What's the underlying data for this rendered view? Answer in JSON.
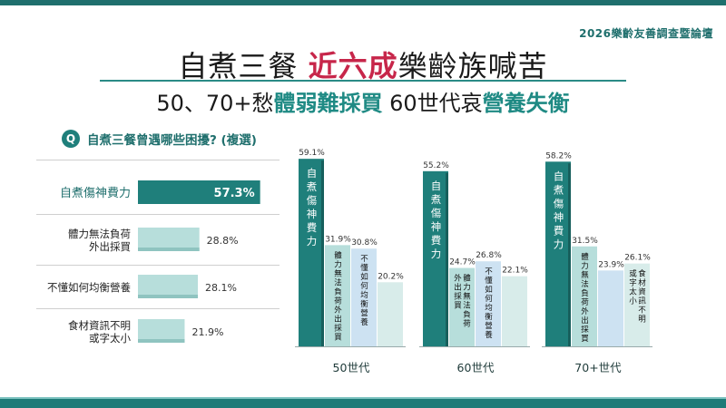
{
  "header_label": "2026樂齡友善調查暨論壇",
  "title": {
    "pre": "自煮三餐 ",
    "highlight": "近六成",
    "post": "樂齡族喊苦"
  },
  "subtitle": {
    "a": "50、70+愁",
    "b": "體弱難採買",
    "c": " 60世代哀",
    "d": "營養失衡"
  },
  "question": {
    "badge": "Q",
    "text": "自煮三餐曾遇哪些困擾? (複選)"
  },
  "colors": {
    "primary": "#1f7f7b",
    "secondary": "#b7dedb",
    "tertiary": "#cde2f2",
    "quaternary": "#d8ecea",
    "title_accent": "#c7264a"
  },
  "chart_data": [
    {
      "type": "bar",
      "orientation": "horizontal",
      "categories": [
        "自煮傷神費力",
        "體力無法負荷\n外出採買",
        "不懂如何均衡營養",
        "食材資訊不明\n或字太小"
      ],
      "values": [
        57.3,
        28.8,
        28.1,
        21.9
      ],
      "value_labels": [
        "57.3%",
        "28.8%",
        "28.1%",
        "21.9%"
      ]
    },
    {
      "type": "bar",
      "orientation": "vertical",
      "groups": [
        {
          "name": "50世代",
          "bars": [
            {
              "label": "自煮傷神費力",
              "value": 59.1,
              "value_label": "59.1%"
            },
            {
              "label": "體力無法負荷外出採買",
              "value": 31.9,
              "value_label": "31.9%"
            },
            {
              "label": "不懂如何均衡營養",
              "value": 30.8,
              "value_label": "30.8%"
            },
            {
              "label": "",
              "value": 20.2,
              "value_label": "20.2%"
            }
          ]
        },
        {
          "name": "60世代",
          "bars": [
            {
              "label": "自煮傷神費力",
              "value": 55.2,
              "value_label": "55.2%"
            },
            {
              "label": "外出採買\n體力無法負荷",
              "value": 24.7,
              "value_label": "24.7%"
            },
            {
              "label": "不懂如何均衡營養",
              "value": 26.8,
              "value_label": "26.8%"
            },
            {
              "label": "",
              "value": 22.1,
              "value_label": "22.1%"
            }
          ]
        },
        {
          "name": "70+世代",
          "bars": [
            {
              "label": "自煮傷神費力",
              "value": 58.2,
              "value_label": "58.2%"
            },
            {
              "label": "體力無法負荷外出採買",
              "value": 31.5,
              "value_label": "31.5%"
            },
            {
              "label": "",
              "value": 23.9,
              "value_label": "23.9%"
            },
            {
              "label": "或字太小\n食材資訊不明",
              "value": 26.1,
              "value_label": "26.1%"
            }
          ]
        }
      ]
    }
  ]
}
